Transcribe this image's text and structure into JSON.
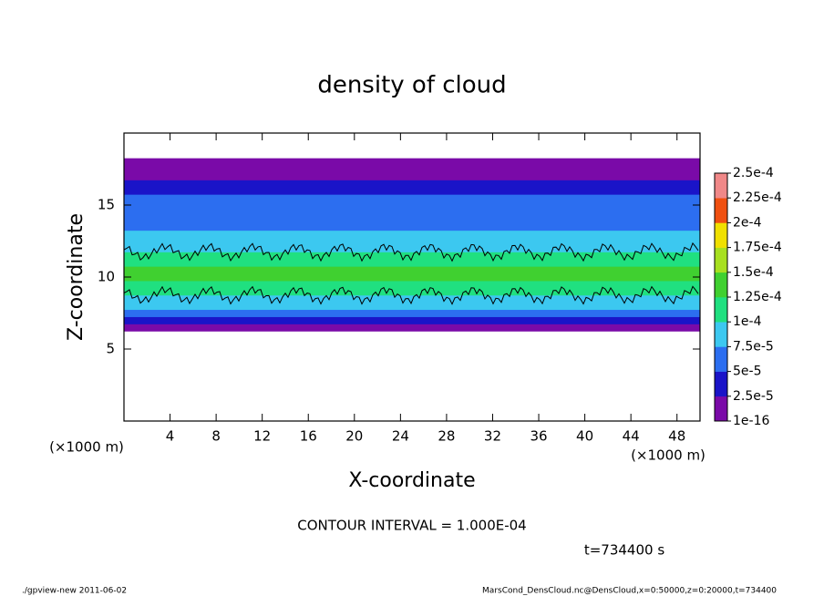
{
  "chart_data": {
    "type": "layered-density",
    "title": "density of cloud",
    "x_label": "X-coordinate",
    "y_label": "Z-coordinate",
    "x_unit": "(×1000 m)",
    "y_unit": "(×1000 m)",
    "xlim": [
      0,
      50
    ],
    "xticks": [
      4,
      8,
      12,
      16,
      20,
      24,
      28,
      32,
      36,
      40,
      44,
      48
    ],
    "ylim": [
      0,
      20
    ],
    "yticks": [
      5,
      10,
      15
    ],
    "z_edges": [
      6.25,
      6.75,
      7.25,
      7.75,
      8.25,
      8.75,
      9.25,
      9.75,
      10.25,
      10.75,
      11.25,
      11.75,
      12.25,
      12.75,
      13.25,
      13.75,
      14.25,
      14.75,
      15.25,
      15.75,
      16.25,
      16.75,
      17.25,
      17.75,
      18.25
    ],
    "values": [
      1e-05,
      3e-05,
      6e-05,
      8.5e-05,
      9.5e-05,
      0.00011,
      0.00012,
      0.00013,
      0.00013,
      0.00012,
      0.000105,
      9e-05,
      8e-05,
      7.5e-05,
      7e-05,
      7e-05,
      6.5e-05,
      6.5e-05,
      6e-05,
      4.5e-05,
      3e-05,
      2e-05,
      1e-05,
      1e-05
    ],
    "contour_level": 0.0001,
    "colorbar": {
      "ticks": [
        1e-16,
        {
          "value": 2.5e-05,
          "label": "2.5e-5"
        },
        {
          "value": 5e-05,
          "label": "5e-5"
        },
        {
          "value": 7.5e-05,
          "label": "7.5e-5"
        },
        {
          "value": 0.0001,
          "label": "1e-4"
        },
        {
          "value": 0.000125,
          "label": "1.25e-4"
        },
        {
          "value": 0.00015,
          "label": "1.5e-4"
        },
        {
          "value": 0.000175,
          "label": "1.75e-4"
        },
        {
          "value": 0.0002,
          "label": "2e-4"
        },
        {
          "value": 0.000225,
          "label": "2.25e-4"
        },
        {
          "value": 0.00025,
          "label": "2.5e-4"
        }
      ],
      "colors": [
        "#7a0aa8",
        "#1a14c8",
        "#2c6ef0",
        "#3cc8f0",
        "#20e080",
        "#40d030",
        "#a8e020",
        "#f0e000",
        "#f05010",
        "#f08888"
      ]
    },
    "contour_note": "CONTOUR INTERVAL = 1.000E-04",
    "time_label": "t=734400 s",
    "footer_left": "./gpview-new   2011-06-02",
    "footer_right": "MarsCond_DensCloud.nc@DensCloud,x=0:50000,z=0:20000,t=734400"
  }
}
